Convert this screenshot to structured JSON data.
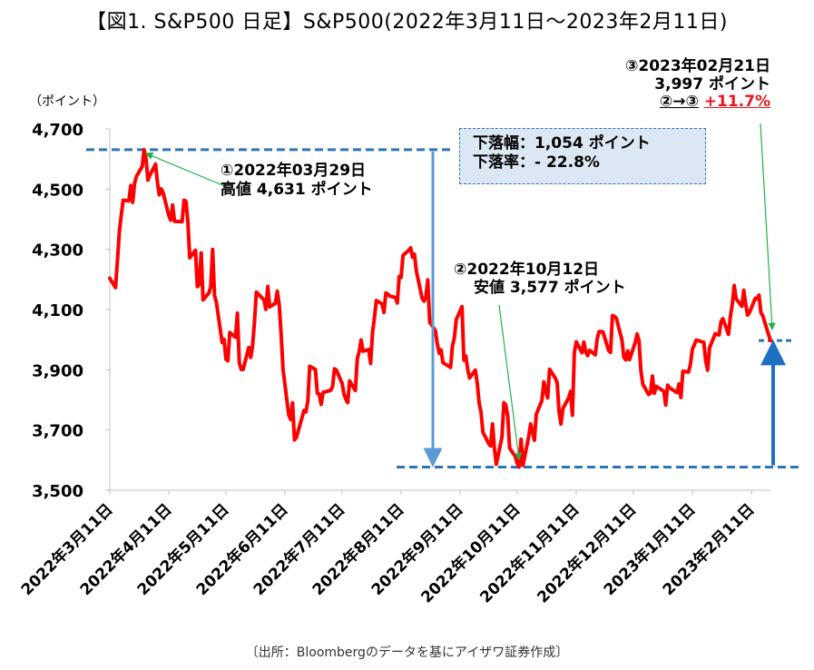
{
  "title": "【図1. S&P500 日足】S&P500(2022年3月11日～2023年2月11日)",
  "source": "〔出所：Bloombergのデータを基にアイザワ証券作成〕",
  "chart_data": {
    "type": "line",
    "title": "【図1. S&P500 日足】S&P500(2022年3月11日～2023年2月11日)",
    "ylabel": "（ポイント）",
    "ylim": [
      3500,
      4700
    ],
    "yticks": [
      3500,
      3700,
      3900,
      4100,
      4300,
      4500,
      4700
    ],
    "ytick_labels": [
      "3,500",
      "3,700",
      "3,900",
      "4,100",
      "4,300",
      "4,500",
      "4,700"
    ],
    "xtick_labels": [
      "2022年3月11日",
      "2022年4月11日",
      "2022年5月11日",
      "2022年6月11日",
      "2022年7月11日",
      "2022年8月11日",
      "2022年9月11日",
      "2022年10月11日",
      "2022年11月11日",
      "2022年12月11日",
      "2023年1月11日",
      "2023年2月11日"
    ],
    "xtick_dates": [
      "2022-03-11",
      "2022-04-11",
      "2022-05-11",
      "2022-06-11",
      "2022-07-11",
      "2022-08-11",
      "2022-09-11",
      "2022-10-11",
      "2022-11-11",
      "2022-12-11",
      "2023-01-11",
      "2023-02-11"
    ],
    "x_end": "2023-02-21",
    "grid": false,
    "line_color": "#ff0000",
    "reference_color": "#2e75b6",
    "series": [
      {
        "name": "S&P500",
        "points": [
          [
            "2022-03-11",
            4204
          ],
          [
            "2022-03-14",
            4173
          ],
          [
            "2022-03-15",
            4262
          ],
          [
            "2022-03-16",
            4358
          ],
          [
            "2022-03-17",
            4412
          ],
          [
            "2022-03-18",
            4463
          ],
          [
            "2022-03-21",
            4461
          ],
          [
            "2022-03-22",
            4512
          ],
          [
            "2022-03-23",
            4456
          ],
          [
            "2022-03-24",
            4520
          ],
          [
            "2022-03-25",
            4543
          ],
          [
            "2022-03-28",
            4575
          ],
          [
            "2022-03-29",
            4631
          ],
          [
            "2022-03-30",
            4602
          ],
          [
            "2022-03-31",
            4530
          ],
          [
            "2022-04-01",
            4546
          ],
          [
            "2022-04-04",
            4583
          ],
          [
            "2022-04-05",
            4525
          ],
          [
            "2022-04-06",
            4481
          ],
          [
            "2022-04-07",
            4501
          ],
          [
            "2022-04-08",
            4488
          ],
          [
            "2022-04-11",
            4413
          ],
          [
            "2022-04-12",
            4397
          ],
          [
            "2022-04-13",
            4447
          ],
          [
            "2022-04-14",
            4393
          ],
          [
            "2022-04-18",
            4392
          ],
          [
            "2022-04-19",
            4463
          ],
          [
            "2022-04-20",
            4460
          ],
          [
            "2022-04-21",
            4394
          ],
          [
            "2022-04-22",
            4272
          ],
          [
            "2022-04-25",
            4297
          ],
          [
            "2022-04-26",
            4176
          ],
          [
            "2022-04-27",
            4184
          ],
          [
            "2022-04-28",
            4288
          ],
          [
            "2022-04-29",
            4132
          ],
          [
            "2022-05-02",
            4155
          ],
          [
            "2022-05-03",
            4175
          ],
          [
            "2022-05-04",
            4300
          ],
          [
            "2022-05-05",
            4147
          ],
          [
            "2022-05-06",
            4123
          ],
          [
            "2022-05-09",
            3991
          ],
          [
            "2022-05-10",
            4001
          ],
          [
            "2022-05-11",
            3935
          ],
          [
            "2022-05-12",
            3930
          ],
          [
            "2022-05-13",
            4024
          ],
          [
            "2022-05-16",
            4008
          ],
          [
            "2022-05-17",
            4088
          ],
          [
            "2022-05-18",
            3923
          ],
          [
            "2022-05-19",
            3901
          ],
          [
            "2022-05-20",
            3901
          ],
          [
            "2022-05-23",
            3974
          ],
          [
            "2022-05-24",
            3941
          ],
          [
            "2022-05-25",
            3979
          ],
          [
            "2022-05-26",
            4058
          ],
          [
            "2022-05-27",
            4158
          ],
          [
            "2022-05-31",
            4132
          ],
          [
            "2022-06-01",
            4101
          ],
          [
            "2022-06-02",
            4177
          ],
          [
            "2022-06-03",
            4109
          ],
          [
            "2022-06-06",
            4121
          ],
          [
            "2022-06-07",
            4161
          ],
          [
            "2022-06-08",
            4116
          ],
          [
            "2022-06-09",
            4018
          ],
          [
            "2022-06-10",
            3901
          ],
          [
            "2022-06-13",
            3750
          ],
          [
            "2022-06-14",
            3735
          ],
          [
            "2022-06-15",
            3790
          ],
          [
            "2022-06-16",
            3667
          ],
          [
            "2022-06-17",
            3675
          ],
          [
            "2022-06-21",
            3765
          ],
          [
            "2022-06-22",
            3760
          ],
          [
            "2022-06-23",
            3796
          ],
          [
            "2022-06-24",
            3912
          ],
          [
            "2022-06-27",
            3901
          ],
          [
            "2022-06-28",
            3822
          ],
          [
            "2022-06-29",
            3819
          ],
          [
            "2022-06-30",
            3785
          ],
          [
            "2022-07-01",
            3825
          ],
          [
            "2022-07-05",
            3832
          ],
          [
            "2022-07-06",
            3845
          ],
          [
            "2022-07-07",
            3903
          ],
          [
            "2022-07-08",
            3899
          ],
          [
            "2022-07-11",
            3855
          ],
          [
            "2022-07-12",
            3819
          ],
          [
            "2022-07-13",
            3802
          ],
          [
            "2022-07-14",
            3791
          ],
          [
            "2022-07-15",
            3863
          ],
          [
            "2022-07-18",
            3831
          ],
          [
            "2022-07-19",
            3937
          ],
          [
            "2022-07-20",
            3960
          ],
          [
            "2022-07-21",
            3999
          ],
          [
            "2022-07-22",
            3962
          ],
          [
            "2022-07-25",
            3967
          ],
          [
            "2022-07-26",
            3921
          ],
          [
            "2022-07-27",
            4024
          ],
          [
            "2022-07-28",
            4072
          ],
          [
            "2022-07-29",
            4130
          ],
          [
            "2022-08-01",
            4119
          ],
          [
            "2022-08-02",
            4091
          ],
          [
            "2022-08-03",
            4155
          ],
          [
            "2022-08-04",
            4152
          ],
          [
            "2022-08-05",
            4145
          ],
          [
            "2022-08-08",
            4140
          ],
          [
            "2022-08-09",
            4122
          ],
          [
            "2022-08-10",
            4210
          ],
          [
            "2022-08-11",
            4207
          ],
          [
            "2022-08-12",
            4280
          ],
          [
            "2022-08-15",
            4297
          ],
          [
            "2022-08-16",
            4305
          ],
          [
            "2022-08-17",
            4274
          ],
          [
            "2022-08-18",
            4284
          ],
          [
            "2022-08-19",
            4228
          ],
          [
            "2022-08-22",
            4138
          ],
          [
            "2022-08-23",
            4128
          ],
          [
            "2022-08-24",
            4141
          ],
          [
            "2022-08-25",
            4199
          ],
          [
            "2022-08-26",
            4058
          ],
          [
            "2022-08-29",
            4030
          ],
          [
            "2022-08-30",
            3986
          ],
          [
            "2022-08-31",
            3955
          ],
          [
            "2022-09-01",
            3966
          ],
          [
            "2022-09-02",
            3924
          ],
          [
            "2022-09-06",
            3908
          ],
          [
            "2022-09-07",
            3980
          ],
          [
            "2022-09-08",
            4006
          ],
          [
            "2022-09-09",
            4067
          ],
          [
            "2022-09-12",
            4110
          ],
          [
            "2022-09-13",
            3932
          ],
          [
            "2022-09-14",
            3946
          ],
          [
            "2022-09-15",
            3901
          ],
          [
            "2022-09-16",
            3873
          ],
          [
            "2022-09-19",
            3899
          ],
          [
            "2022-09-20",
            3856
          ],
          [
            "2022-09-21",
            3790
          ],
          [
            "2022-09-22",
            3758
          ],
          [
            "2022-09-23",
            3693
          ],
          [
            "2022-09-26",
            3655
          ],
          [
            "2022-09-27",
            3647
          ],
          [
            "2022-09-28",
            3720
          ],
          [
            "2022-09-29",
            3640
          ],
          [
            "2022-09-30",
            3586
          ],
          [
            "2022-10-03",
            3678
          ],
          [
            "2022-10-04",
            3791
          ],
          [
            "2022-10-05",
            3783
          ],
          [
            "2022-10-06",
            3745
          ],
          [
            "2022-10-07",
            3640
          ],
          [
            "2022-10-10",
            3612
          ],
          [
            "2022-10-11",
            3589
          ],
          [
            "2022-10-12",
            3577
          ],
          [
            "2022-10-13",
            3669
          ],
          [
            "2022-10-14",
            3583
          ],
          [
            "2022-10-17",
            3678
          ],
          [
            "2022-10-18",
            3720
          ],
          [
            "2022-10-19",
            3695
          ],
          [
            "2022-10-20",
            3666
          ],
          [
            "2022-10-21",
            3752
          ],
          [
            "2022-10-24",
            3798
          ],
          [
            "2022-10-25",
            3860
          ],
          [
            "2022-10-26",
            3831
          ],
          [
            "2022-10-27",
            3807
          ],
          [
            "2022-10-28",
            3902
          ],
          [
            "2022-10-31",
            3872
          ],
          [
            "2022-11-01",
            3857
          ],
          [
            "2022-11-02",
            3760
          ],
          [
            "2022-11-03",
            3720
          ],
          [
            "2022-11-04",
            3771
          ],
          [
            "2022-11-07",
            3807
          ],
          [
            "2022-11-08",
            3828
          ],
          [
            "2022-11-09",
            3749
          ],
          [
            "2022-11-10",
            3956
          ],
          [
            "2022-11-11",
            3993
          ],
          [
            "2022-11-14",
            3957
          ],
          [
            "2022-11-15",
            3992
          ],
          [
            "2022-11-16",
            3959
          ],
          [
            "2022-11-17",
            3947
          ],
          [
            "2022-11-18",
            3965
          ],
          [
            "2022-11-21",
            3950
          ],
          [
            "2022-11-22",
            4004
          ],
          [
            "2022-11-23",
            4027
          ],
          [
            "2022-11-25",
            4026
          ],
          [
            "2022-11-28",
            3964
          ],
          [
            "2022-11-29",
            3958
          ],
          [
            "2022-11-30",
            4080
          ],
          [
            "2022-12-01",
            4077
          ],
          [
            "2022-12-02",
            4072
          ],
          [
            "2022-12-05",
            3999
          ],
          [
            "2022-12-06",
            3941
          ],
          [
            "2022-12-07",
            3933
          ],
          [
            "2022-12-08",
            3963
          ],
          [
            "2022-12-09",
            3934
          ],
          [
            "2022-12-12",
            3991
          ],
          [
            "2022-12-13",
            4019
          ],
          [
            "2022-12-14",
            3996
          ],
          [
            "2022-12-15",
            3896
          ],
          [
            "2022-12-16",
            3852
          ],
          [
            "2022-12-19",
            3818
          ],
          [
            "2022-12-20",
            3822
          ],
          [
            "2022-12-21",
            3879
          ],
          [
            "2022-12-22",
            3822
          ],
          [
            "2022-12-23",
            3845
          ],
          [
            "2022-12-27",
            3829
          ],
          [
            "2022-12-28",
            3783
          ],
          [
            "2022-12-29",
            3849
          ],
          [
            "2022-12-30",
            3840
          ],
          [
            "2023-01-03",
            3824
          ],
          [
            "2023-01-04",
            3853
          ],
          [
            "2023-01-05",
            3808
          ],
          [
            "2023-01-06",
            3895
          ],
          [
            "2023-01-09",
            3893
          ],
          [
            "2023-01-10",
            3919
          ],
          [
            "2023-01-11",
            3969
          ],
          [
            "2023-01-12",
            3983
          ],
          [
            "2023-01-13",
            3999
          ],
          [
            "2023-01-17",
            3991
          ],
          [
            "2023-01-18",
            3929
          ],
          [
            "2023-01-19",
            3899
          ],
          [
            "2023-01-20",
            3973
          ],
          [
            "2023-01-23",
            4020
          ],
          [
            "2023-01-24",
            4017
          ],
          [
            "2023-01-25",
            4016
          ],
          [
            "2023-01-26",
            4060
          ],
          [
            "2023-01-27",
            4070
          ],
          [
            "2023-01-30",
            4018
          ],
          [
            "2023-01-31",
            4077
          ],
          [
            "2023-02-01",
            4119
          ],
          [
            "2023-02-02",
            4180
          ],
          [
            "2023-02-03",
            4136
          ],
          [
            "2023-02-06",
            4111
          ],
          [
            "2023-02-07",
            4164
          ],
          [
            "2023-02-08",
            4118
          ],
          [
            "2023-02-09",
            4082
          ],
          [
            "2023-02-10",
            4090
          ],
          [
            "2023-02-13",
            4137
          ],
          [
            "2023-02-14",
            4136
          ],
          [
            "2023-02-15",
            4148
          ],
          [
            "2023-02-16",
            4090
          ],
          [
            "2023-02-17",
            4079
          ],
          [
            "2023-02-21",
            3997
          ]
        ]
      }
    ],
    "annotations": {
      "high": {
        "date": "2022-03-29",
        "value": 4631,
        "line1": "①2022年03月29日",
        "line2": "高値 4,631 ポイント"
      },
      "low": {
        "date": "2022-10-12",
        "value": 3577,
        "line1": "②2022年10月12日",
        "line2": "安値 3,577 ポイント"
      },
      "last": {
        "date": "2023-02-21",
        "value": 3997,
        "line1": "③2023年02月21日",
        "line2": "3,997 ポイント",
        "change_label": "②→③",
        "change_value": "+11.7%"
      },
      "drop": {
        "line1": "下落幅：1,054 ポイント",
        "line2": "下落率：- 22.8%"
      }
    }
  }
}
